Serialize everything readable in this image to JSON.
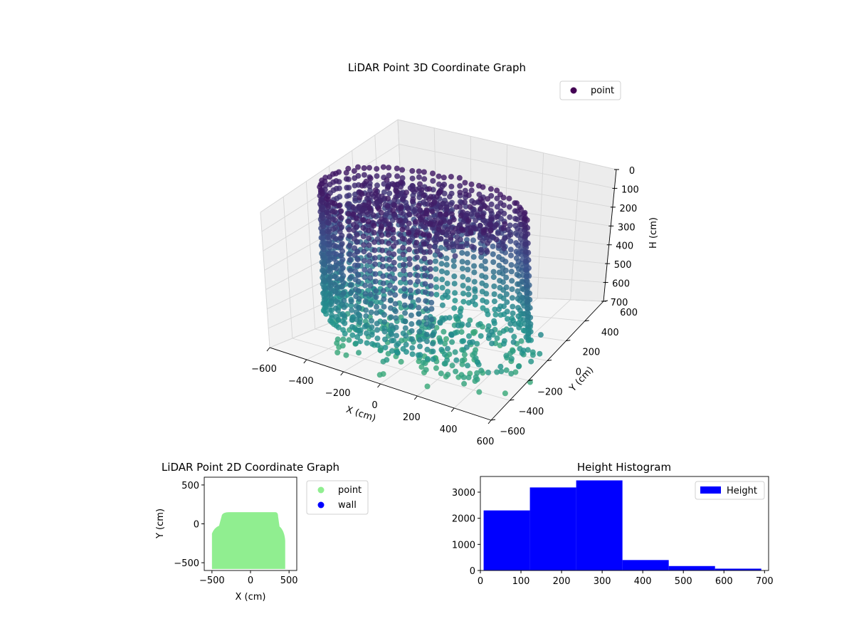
{
  "colors": {
    "viridis_dark": "#440154",
    "viridis_mid": "#31688e",
    "viridis_teal": "#21918c",
    "point_2d": "#90ee90",
    "wall_2d": "#0000ff",
    "hist_bar": "#0000ff"
  },
  "chart_data": [
    {
      "type": "scatter3d",
      "title": "LiDAR Point 3D Coordinate Graph",
      "xlabel": "X (cm)",
      "ylabel": "Y (cm)",
      "zlabel": "H (cm)",
      "xlim": [
        -600,
        600
      ],
      "ylim": [
        -600,
        600
      ],
      "zlim": [
        700,
        0
      ],
      "xticks": [
        "−600",
        "−400",
        "−200",
        "0",
        "200",
        "400",
        "600"
      ],
      "yticks": [
        "−600",
        "−400",
        "−200",
        "0",
        "200",
        "400",
        "600"
      ],
      "zticks": [
        "0",
        "100",
        "200",
        "300",
        "400",
        "500",
        "600",
        "700"
      ],
      "legend": {
        "position": "upper-right",
        "entries": [
          {
            "name": "point",
            "color": "#440154"
          }
        ]
      },
      "grid": true,
      "colormap": "viridis"
    },
    {
      "type": "scatter",
      "title": "LiDAR Point 2D Coordinate Graph",
      "xlabel": "X (cm)",
      "ylabel": "Y (cm)",
      "xlim": [
        -600,
        600
      ],
      "ylim": [
        -600,
        600
      ],
      "xticks": [
        "−500",
        "0",
        "500"
      ],
      "yticks": [
        "−500",
        "0",
        "500"
      ],
      "legend": {
        "position": "outside-upper-right",
        "entries": [
          {
            "name": "point",
            "color": "#90ee90"
          },
          {
            "name": "wall",
            "color": "#0000ff"
          }
        ]
      },
      "point_region": {
        "x_range": [
          -500,
          450
        ],
        "y_range": [
          -580,
          150
        ]
      }
    },
    {
      "type": "bar",
      "title": "Height Histogram",
      "xlabel": "",
      "ylabel": "",
      "xlim": [
        0,
        710
      ],
      "ylim": [
        0,
        3600
      ],
      "xticks": [
        "0",
        "100",
        "200",
        "300",
        "400",
        "500",
        "600",
        "700"
      ],
      "yticks": [
        "0",
        "1000",
        "2000",
        "3000"
      ],
      "legend": {
        "position": "upper-right",
        "entries": [
          {
            "name": "Height",
            "color": "#0000ff"
          }
        ]
      },
      "bins": [
        {
          "start": 8,
          "end": 122,
          "count": 2300
        },
        {
          "start": 122,
          "end": 236,
          "count": 3180
        },
        {
          "start": 236,
          "end": 350,
          "count": 3450
        },
        {
          "start": 350,
          "end": 464,
          "count": 400
        },
        {
          "start": 464,
          "end": 578,
          "count": 170
        },
        {
          "start": 578,
          "end": 692,
          "count": 70
        }
      ]
    }
  ]
}
